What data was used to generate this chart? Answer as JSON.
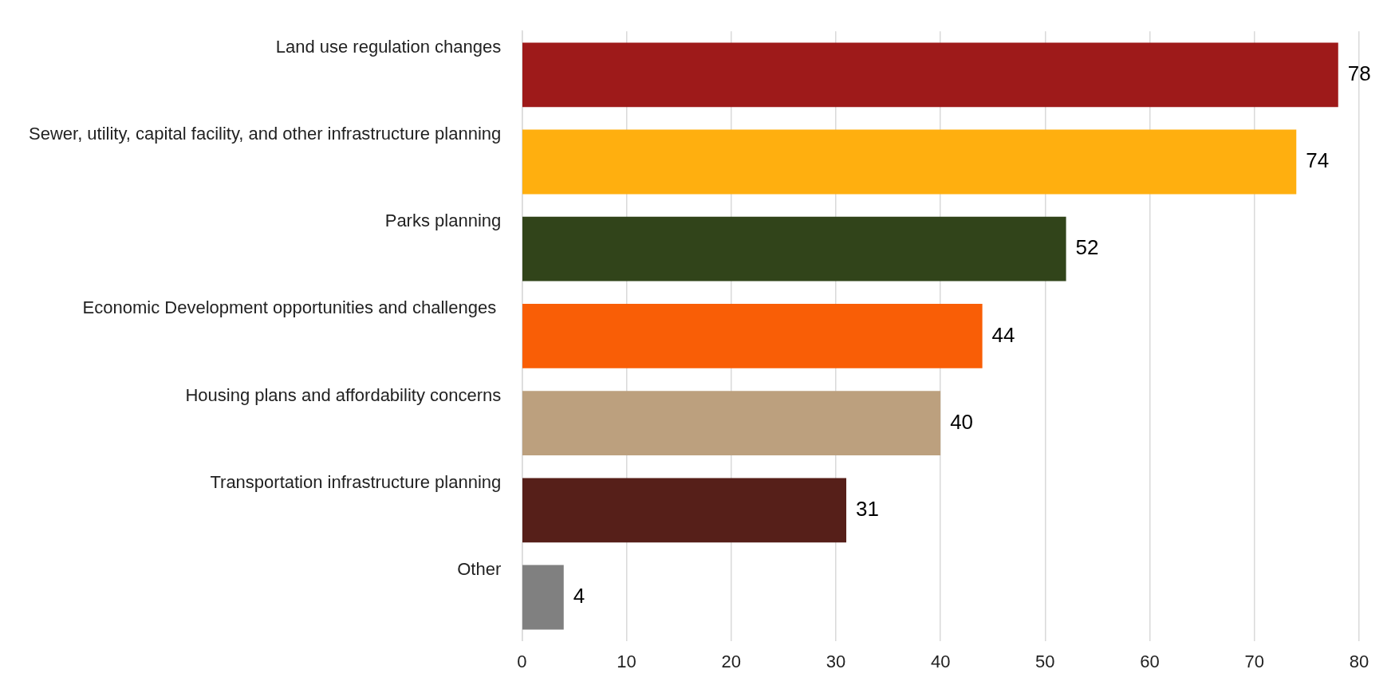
{
  "chart_data": {
    "type": "bar",
    "orientation": "horizontal",
    "categories": [
      "Land use regulation changes",
      "Sewer, utility, capital facility, and other infrastructure planning",
      "Parks planning",
      "Economic Development opportunities and challenges ",
      "Housing plans and affordability concerns",
      "Transportation infrastructure planning",
      "Other"
    ],
    "values": [
      78,
      74,
      52,
      44,
      40,
      31,
      4
    ],
    "colors": [
      "#9e1a1a",
      "#ffaf0f",
      "#31441a",
      "#f95e06",
      "#bca07e",
      "#561f19",
      "#808080"
    ],
    "xlim": [
      0,
      80
    ],
    "xticks": [
      0,
      10,
      20,
      30,
      40,
      50,
      60,
      70,
      80
    ],
    "grid": "x",
    "data_labels": true
  }
}
